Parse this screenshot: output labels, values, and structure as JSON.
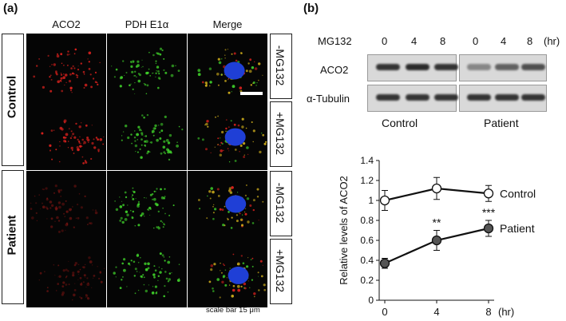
{
  "panel_a": {
    "label": "(a)",
    "columns": [
      "ACO2",
      "PDH E1α",
      "Merge"
    ],
    "groups": [
      {
        "name": "Control",
        "rows": [
          "-MG132",
          "+MG132"
        ]
      },
      {
        "name": "Patient",
        "rows": [
          "-MG132",
          "+MG132"
        ]
      }
    ],
    "scale_bar_label": "scale bar 15 μm"
  },
  "panel_b": {
    "label": "(b)",
    "western": {
      "treatment_label": "MG132",
      "timepoints": [
        "0",
        "4",
        "8",
        "0",
        "4",
        "8"
      ],
      "unit": "(hr)",
      "rows": [
        "ACO2",
        "α-Tubulin"
      ],
      "groups": [
        "Control",
        "Patient"
      ],
      "band_intensity": {
        "ACO2": [
          0.9,
          0.95,
          0.9,
          0.45,
          0.65,
          0.75
        ],
        "α-Tubulin": [
          0.9,
          0.9,
          0.9,
          0.9,
          0.9,
          0.9
        ]
      }
    }
  },
  "chart_data": {
    "type": "line",
    "x": [
      0,
      4,
      8
    ],
    "x_ticks": [
      "0",
      "4",
      "8"
    ],
    "x_unit": "(hr)",
    "ylabel": "Relative levels of ACO2",
    "ylim": [
      0,
      1.4
    ],
    "y_ticks": [
      "0",
      "0.2",
      "0.4",
      "0.6",
      "0.8",
      "1",
      "1.2",
      "1.4"
    ],
    "series": [
      {
        "name": "Control",
        "values": [
          1.0,
          1.12,
          1.07
        ],
        "error": [
          0.1,
          0.11,
          0.08
        ],
        "marker": "open-circle",
        "color": "#111111"
      },
      {
        "name": "Patient",
        "values": [
          0.37,
          0.6,
          0.72
        ],
        "error": [
          0.05,
          0.1,
          0.08
        ],
        "marker": "filled-circle",
        "color": "#555555"
      }
    ],
    "annotations": [
      {
        "x": 4,
        "text": "**"
      },
      {
        "x": 8,
        "text": "***"
      }
    ],
    "legend": "right, next to line ends"
  }
}
